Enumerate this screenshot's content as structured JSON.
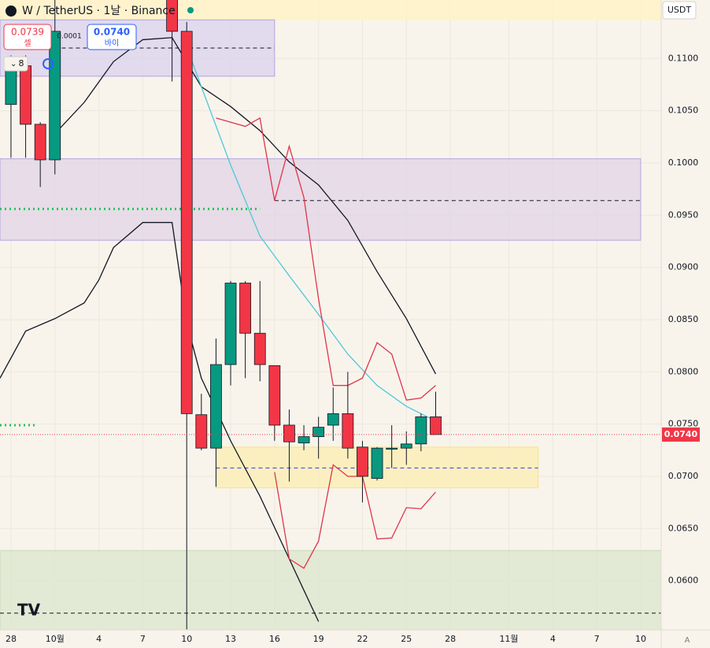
{
  "chart_data": {
    "type": "candlestick",
    "title": "W / TetherUS · 1날 · Binance",
    "sell": {
      "price": "0.0739",
      "label": "셀"
    },
    "spread": "0.0001",
    "buy": {
      "price": "0.0740",
      "label": "바이"
    },
    "indicator_count": "8",
    "currency": "USDT",
    "scale_mode": "A",
    "up_color": "#089981",
    "down_color": "#f23645",
    "ylim": [
      0.0553,
      0.1156
    ],
    "yticks": [
      {
        "value": 0.06,
        "label": "0.0600"
      },
      {
        "value": 0.065,
        "label": "0.0650"
      },
      {
        "value": 0.07,
        "label": "0.0700"
      },
      {
        "value": 0.075,
        "label": "0.0750"
      },
      {
        "value": 0.08,
        "label": "0.0800"
      },
      {
        "value": 0.085,
        "label": "0.0850"
      },
      {
        "value": 0.09,
        "label": "0.0900"
      },
      {
        "value": 0.095,
        "label": "0.0950"
      },
      {
        "value": 0.1,
        "label": "0.1000"
      },
      {
        "value": 0.105,
        "label": "0.1050"
      },
      {
        "value": 0.11,
        "label": "0.1100"
      }
    ],
    "xlim": [
      -0.75,
      44.4
    ],
    "xticks": [
      {
        "value": 0,
        "label": "28"
      },
      {
        "value": 3,
        "label": "10월"
      },
      {
        "value": 6,
        "label": "4"
      },
      {
        "value": 9,
        "label": "7"
      },
      {
        "value": 12,
        "label": "10"
      },
      {
        "value": 15,
        "label": "13"
      },
      {
        "value": 18,
        "label": "16"
      },
      {
        "value": 21,
        "label": "19"
      },
      {
        "value": 24,
        "label": "22"
      },
      {
        "value": 27,
        "label": "25"
      },
      {
        "value": 30,
        "label": "28"
      },
      {
        "value": 34,
        "label": "11월"
      },
      {
        "value": 37,
        "label": "4"
      },
      {
        "value": 40,
        "label": "7"
      },
      {
        "value": 43,
        "label": "10"
      }
    ],
    "grid": true,
    "last_price": {
      "value": 0.074,
      "label": "0.0740"
    },
    "candles": {
      "x": [
        0,
        1,
        2,
        3,
        11,
        12,
        13,
        14,
        15,
        16,
        17,
        18,
        19,
        20,
        21,
        22,
        23,
        24,
        25,
        26,
        27,
        28,
        29
      ],
      "open": [
        0.1056,
        0.1093,
        0.1037,
        0.1003,
        0.116,
        0.1126,
        0.0759,
        0.0727,
        0.0807,
        0.0885,
        0.0837,
        0.0806,
        0.0749,
        0.0732,
        0.0738,
        0.0749,
        0.076,
        0.0728,
        0.0698,
        0.0726,
        0.0727,
        0.0731,
        0.0757
      ],
      "high": [
        0.1103,
        0.1103,
        0.1039,
        0.1156,
        0.1165,
        0.1135,
        0.0779,
        0.0832,
        0.0887,
        0.0887,
        0.0887,
        0.0806,
        0.0764,
        0.0749,
        0.0757,
        0.0785,
        0.08,
        0.0734,
        0.0728,
        0.0749,
        0.0743,
        0.076,
        0.0781
      ],
      "low": [
        0.1005,
        0.1005,
        0.0977,
        0.0989,
        0.1078,
        0.054,
        0.0725,
        0.069,
        0.0787,
        0.0794,
        0.0791,
        0.0734,
        0.0695,
        0.0725,
        0.0717,
        0.0734,
        0.0717,
        0.0675,
        0.0696,
        0.0708,
        0.0711,
        0.0724,
        0.074
      ],
      "close": [
        0.1093,
        0.1037,
        0.1003,
        0.1126,
        0.1126,
        0.076,
        0.0727,
        0.0807,
        0.0885,
        0.0837,
        0.0807,
        0.0749,
        0.0733,
        0.0738,
        0.0747,
        0.076,
        0.0727,
        0.07,
        0.0727,
        0.0727,
        0.0731,
        0.0757,
        0.074
      ]
    },
    "lines": [
      {
        "color": "#131722",
        "x": [
          -0.75,
          1,
          3,
          5,
          6,
          7,
          9,
          11,
          12,
          13,
          15,
          17,
          19,
          21
        ],
        "values": [
          0.0794,
          0.0839,
          0.0851,
          0.0866,
          0.0888,
          0.0919,
          0.0943,
          0.0943,
          0.0847,
          0.0794,
          0.0734,
          0.0681,
          0.0621,
          0.0561
        ]
      },
      {
        "color": "#131722",
        "x": [
          3,
          5,
          7,
          9,
          11,
          13,
          15,
          17,
          19,
          21,
          23,
          25,
          27,
          29
        ],
        "values": [
          0.1028,
          0.1058,
          0.1097,
          0.1118,
          0.112,
          0.1073,
          0.1054,
          0.1031,
          0.1001,
          0.0979,
          0.0945,
          0.0896,
          0.0851,
          0.0798
        ]
      },
      {
        "color": "#4dc8d8",
        "x": [
          12,
          13,
          15,
          17,
          19,
          21,
          23,
          25,
          27,
          29
        ],
        "values": [
          0.1111,
          0.1073,
          0.0998,
          0.093,
          0.0892,
          0.0855,
          0.0817,
          0.0787,
          0.0767,
          0.0753
        ]
      },
      {
        "color": "#e0344a",
        "x": [
          14,
          16,
          17,
          18,
          19,
          20,
          21,
          22,
          23,
          24,
          25,
          26,
          27,
          28,
          29
        ],
        "values": [
          0.1043,
          0.1035,
          0.1043,
          0.0964,
          0.1016,
          0.0967,
          0.087,
          0.0787,
          0.0787,
          0.0794,
          0.0828,
          0.0817,
          0.0773,
          0.0775,
          0.0787
        ]
      },
      {
        "color": "#e0344a",
        "x": [
          18,
          19,
          20,
          21,
          22,
          23,
          24,
          25,
          26,
          27,
          28,
          29
        ],
        "values": [
          0.0704,
          0.0621,
          0.0612,
          0.0638,
          0.0711,
          0.07,
          0.07,
          0.064,
          0.0641,
          0.067,
          0.0669,
          0.0685
        ]
      }
    ],
    "zones": [
      {
        "color": "#fff3c4",
        "border": "#fff3c4",
        "x": [
          -0.75,
          44.4
        ],
        "y": [
          0.1137,
          0.1165
        ]
      },
      {
        "color": "#dcd3ee",
        "border": "#b3a4e0",
        "x": [
          -0.75,
          18
        ],
        "y": [
          0.1083,
          0.1137
        ]
      },
      {
        "color": "#e2d6e6",
        "border": "#b3a4e0",
        "x": [
          -0.75,
          43
        ],
        "y": [
          0.0926,
          0.1004
        ]
      },
      {
        "color": "#fbeeb5",
        "border": "#f5e28a",
        "x": [
          14,
          36
        ],
        "y": [
          0.0689,
          0.0728
        ]
      },
      {
        "color": "#dce6cf",
        "border": "#c8dcb8",
        "x": [
          -0.75,
          44.4
        ],
        "y": [
          0.0553,
          0.0629
        ]
      }
    ],
    "levels": [
      {
        "value": 0.111,
        "x": [
          2.5,
          18
        ],
        "color": "#131722",
        "style": "dashed"
      },
      {
        "value": 0.0964,
        "x": [
          18,
          43
        ],
        "color": "#131722",
        "style": "dashed"
      },
      {
        "value": 0.0708,
        "x": [
          14,
          36
        ],
        "color": "#3a3ad0",
        "style": "dashed"
      },
      {
        "value": 0.0569,
        "x": [
          -0.75,
          44.4
        ],
        "color": "#131722",
        "style": "dashed"
      },
      {
        "value": 0.0956,
        "x": [
          -0.75,
          17
        ],
        "color": "#22c55e",
        "style": "dotted"
      },
      {
        "value": 0.0749,
        "x": [
          -0.75,
          1.8
        ],
        "color": "#22c55e",
        "style": "dotted"
      }
    ]
  }
}
